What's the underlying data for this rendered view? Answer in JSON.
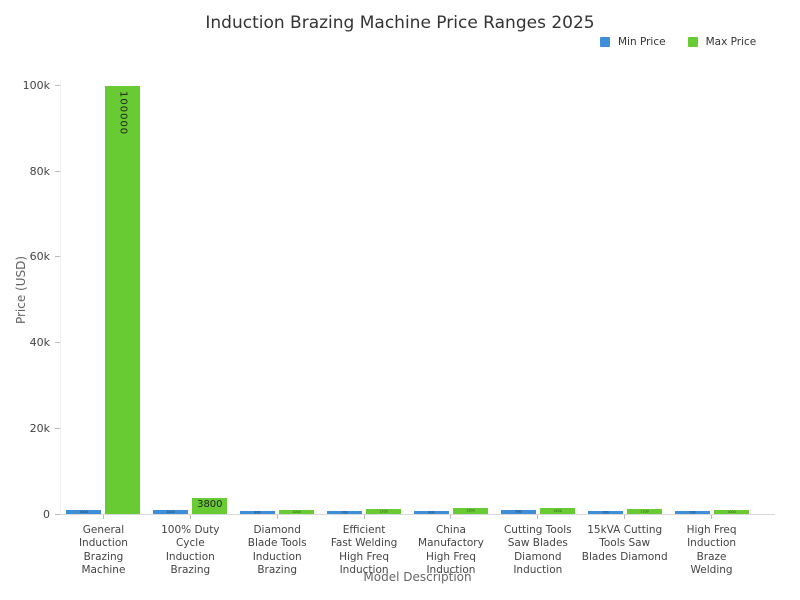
{
  "title": "Induction Brazing Machine Price Ranges 2025",
  "legend": {
    "items": [
      {
        "label": "Min Price",
        "color": "#3E8FD8"
      },
      {
        "label": "Max Price",
        "color": "#69CB34"
      }
    ]
  },
  "chart_data": {
    "type": "bar",
    "title": "Induction Brazing Machine Price Ranges 2025",
    "xlabel": "Model Description",
    "ylabel": "Price (USD)",
    "ylim": [
      0,
      100000
    ],
    "grid": false,
    "legend_position": "top-right",
    "ytick_values": [
      0,
      20000,
      40000,
      60000,
      80000,
      100000
    ],
    "ytick_labels": [
      "0",
      "20k",
      "40k",
      "60k",
      "80k",
      "100k"
    ],
    "categories": [
      "General\nInduction\nBrazing\nMachine",
      "100% Duty\nCycle\nInduction\nBrazing",
      "Diamond\nBlade Tools\nInduction\nBrazing",
      "Efficient\nFast Welding\nHigh Freq\nInduction",
      "China\nManufactory\nHigh Freq\nInduction",
      "Cutting Tools\nSaw Blades\nDiamond\nInduction",
      "15kVA Cutting\nTools Saw\nBlades Diamond",
      "High Freq\nInduction\nBraze\nWelding"
    ],
    "series": [
      {
        "name": "Min Price",
        "color": "#3E8FD8",
        "values": [
          1000,
          1000,
          800,
          700,
          800,
          900,
          700,
          700
        ]
      },
      {
        "name": "Max Price",
        "color": "#69CB34",
        "values": [
          100000,
          3800,
          1000,
          1200,
          1300,
          1400,
          1100,
          1000
        ]
      }
    ],
    "visible_bar_labels": [
      "100000",
      "3800"
    ]
  }
}
